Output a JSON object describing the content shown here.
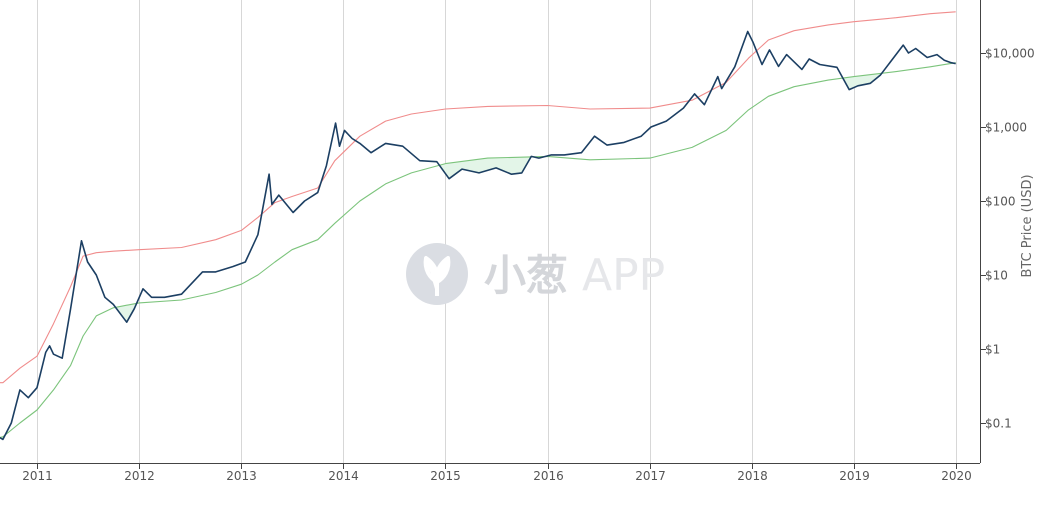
{
  "watermark": {
    "brand": "小葱",
    "suffix": "APP"
  },
  "chart_data": {
    "type": "line",
    "title": "",
    "xlabel": "",
    "ylabel": "BTC Price (USD)",
    "y_scale": "log",
    "ylim": [
      0.03,
      50000
    ],
    "xlim": [
      "2010-07-18",
      "2020-02-01"
    ],
    "grid": {
      "vertical": true,
      "horizontal": false
    },
    "x_ticks": [
      {
        "date": "2011-01-01",
        "label": "2011"
      },
      {
        "date": "2012-01-01",
        "label": "2012"
      },
      {
        "date": "2013-01-01",
        "label": "2013"
      },
      {
        "date": "2014-01-01",
        "label": "2014"
      },
      {
        "date": "2015-01-01",
        "label": "2015"
      },
      {
        "date": "2016-01-01",
        "label": "2016"
      },
      {
        "date": "2017-01-01",
        "label": "2017"
      },
      {
        "date": "2018-01-01",
        "label": "2018"
      },
      {
        "date": "2019-01-01",
        "label": "2019"
      },
      {
        "date": "2020-01-01",
        "label": "2020"
      }
    ],
    "y_ticks": [
      {
        "value": 0.1,
        "label": "$0.1"
      },
      {
        "value": 1,
        "label": "$1"
      },
      {
        "value": 10,
        "label": "$10"
      },
      {
        "value": 100,
        "label": "$100"
      },
      {
        "value": 1000,
        "label": "$1,000"
      },
      {
        "value": 10000,
        "label": "$10,000"
      }
    ],
    "fill_between": {
      "between": [
        "price",
        "lower_band"
      ],
      "where": "price < lower_band",
      "color": "#e3f5e8"
    },
    "series": [
      {
        "key": "upper_band",
        "color": "#f08c8c",
        "x": [
          "2010-07-18",
          "2010-09-01",
          "2010-11-01",
          "2011-01-01",
          "2011-03-01",
          "2011-05-01",
          "2011-06-15",
          "2011-08-01",
          "2011-10-01",
          "2012-01-01",
          "2012-06-01",
          "2012-10-01",
          "2013-01-01",
          "2013-03-01",
          "2013-05-01",
          "2013-07-01",
          "2013-10-01",
          "2013-12-01",
          "2014-03-01",
          "2014-06-01",
          "2014-09-01",
          "2015-01-01",
          "2015-06-01",
          "2016-01-01",
          "2016-06-01",
          "2017-01-01",
          "2017-06-01",
          "2017-10-01",
          "2017-12-20",
          "2018-03-01",
          "2018-06-01",
          "2018-10-01",
          "2019-01-01",
          "2019-06-01",
          "2019-10-01",
          "2019-12-31"
        ],
        "y": [
          0.35,
          0.35,
          0.55,
          0.8,
          2.2,
          7,
          18,
          20,
          21,
          22,
          23.5,
          30,
          40,
          60,
          95,
          115,
          150,
          350,
          750,
          1200,
          1500,
          1750,
          1900,
          1950,
          1750,
          1800,
          2300,
          4000,
          8500,
          15000,
          20000,
          24000,
          26500,
          30000,
          34000,
          36000
        ]
      },
      {
        "key": "lower_band",
        "color": "#7cc47c",
        "x": [
          "2010-07-18",
          "2010-09-01",
          "2010-11-01",
          "2011-01-01",
          "2011-03-01",
          "2011-05-01",
          "2011-06-15",
          "2011-08-01",
          "2011-10-01",
          "2012-01-01",
          "2012-06-01",
          "2012-10-01",
          "2013-01-01",
          "2013-03-01",
          "2013-05-01",
          "2013-07-01",
          "2013-10-01",
          "2013-12-01",
          "2014-03-01",
          "2014-06-01",
          "2014-09-01",
          "2015-01-01",
          "2015-06-01",
          "2016-01-01",
          "2016-06-01",
          "2017-01-01",
          "2017-06-01",
          "2017-10-01",
          "2017-12-20",
          "2018-03-01",
          "2018-06-01",
          "2018-10-01",
          "2019-01-01",
          "2019-06-01",
          "2019-10-01",
          "2019-12-31"
        ],
        "y": [
          0.06,
          0.065,
          0.1,
          0.15,
          0.28,
          0.6,
          1.5,
          2.8,
          3.6,
          4.2,
          4.6,
          5.8,
          7.5,
          10,
          15,
          22,
          30,
          50,
          100,
          170,
          240,
          320,
          380,
          400,
          360,
          380,
          530,
          900,
          1700,
          2600,
          3500,
          4300,
          4800,
          5600,
          6500,
          7400
        ]
      },
      {
        "key": "price",
        "color": "#1c3f63",
        "x": [
          "2010-07-18",
          "2010-08-01",
          "2010-09-01",
          "2010-10-01",
          "2010-11-01",
          "2010-12-01",
          "2011-01-01",
          "2011-02-01",
          "2011-02-15",
          "2011-03-01",
          "2011-04-01",
          "2011-05-01",
          "2011-06-09",
          "2011-07-01",
          "2011-08-01",
          "2011-09-01",
          "2011-10-01",
          "2011-11-18",
          "2011-12-15",
          "2012-01-15",
          "2012-02-15",
          "2012-04-01",
          "2012-06-01",
          "2012-08-15",
          "2012-10-01",
          "2012-12-01",
          "2013-01-15",
          "2013-03-01",
          "2013-04-10",
          "2013-04-20",
          "2013-05-15",
          "2013-07-05",
          "2013-08-15",
          "2013-10-01",
          "2013-11-01",
          "2013-12-04",
          "2013-12-18",
          "2014-01-05",
          "2014-02-01",
          "2014-03-01",
          "2014-04-10",
          "2014-06-01",
          "2014-08-01",
          "2014-10-01",
          "2014-12-01",
          "2015-01-14",
          "2015-03-01",
          "2015-05-01",
          "2015-07-01",
          "2015-08-25",
          "2015-10-01",
          "2015-11-04",
          "2015-12-01",
          "2016-01-15",
          "2016-03-01",
          "2016-05-01",
          "2016-06-17",
          "2016-08-01",
          "2016-10-01",
          "2016-12-01",
          "2017-01-05",
          "2017-03-01",
          "2017-05-01",
          "2017-06-10",
          "2017-07-15",
          "2017-09-01",
          "2017-09-15",
          "2017-11-01",
          "2017-12-17",
          "2018-01-05",
          "2018-02-06",
          "2018-03-05",
          "2018-04-06",
          "2018-05-05",
          "2018-06-29",
          "2018-07-25",
          "2018-09-01",
          "2018-11-01",
          "2018-12-15",
          "2019-01-15",
          "2019-03-01",
          "2019-04-05",
          "2019-05-15",
          "2019-06-26",
          "2019-07-15",
          "2019-08-10",
          "2019-09-20",
          "2019-10-25",
          "2019-11-20",
          "2019-12-15",
          "2019-12-31"
        ],
        "y": [
          0.06,
          0.07,
          0.06,
          0.1,
          0.28,
          0.22,
          0.3,
          0.9,
          1.1,
          0.85,
          0.75,
          3.5,
          29,
          15,
          10,
          5,
          4,
          2.3,
          3.5,
          6.5,
          5,
          5,
          5.5,
          11,
          11,
          13,
          15,
          35,
          230,
          90,
          120,
          70,
          100,
          130,
          300,
          1130,
          550,
          900,
          700,
          600,
          450,
          600,
          550,
          350,
          340,
          200,
          270,
          240,
          280,
          230,
          240,
          400,
          380,
          420,
          420,
          450,
          750,
          570,
          620,
          750,
          1000,
          1200,
          1800,
          2800,
          2000,
          4800,
          3300,
          6500,
          19500,
          14000,
          7000,
          11000,
          6600,
          9500,
          6000,
          8300,
          7000,
          6400,
          3200,
          3600,
          3900,
          5000,
          7900,
          12800,
          10000,
          11500,
          8700,
          9500,
          8000,
          7400,
          7200
        ]
      }
    ]
  }
}
